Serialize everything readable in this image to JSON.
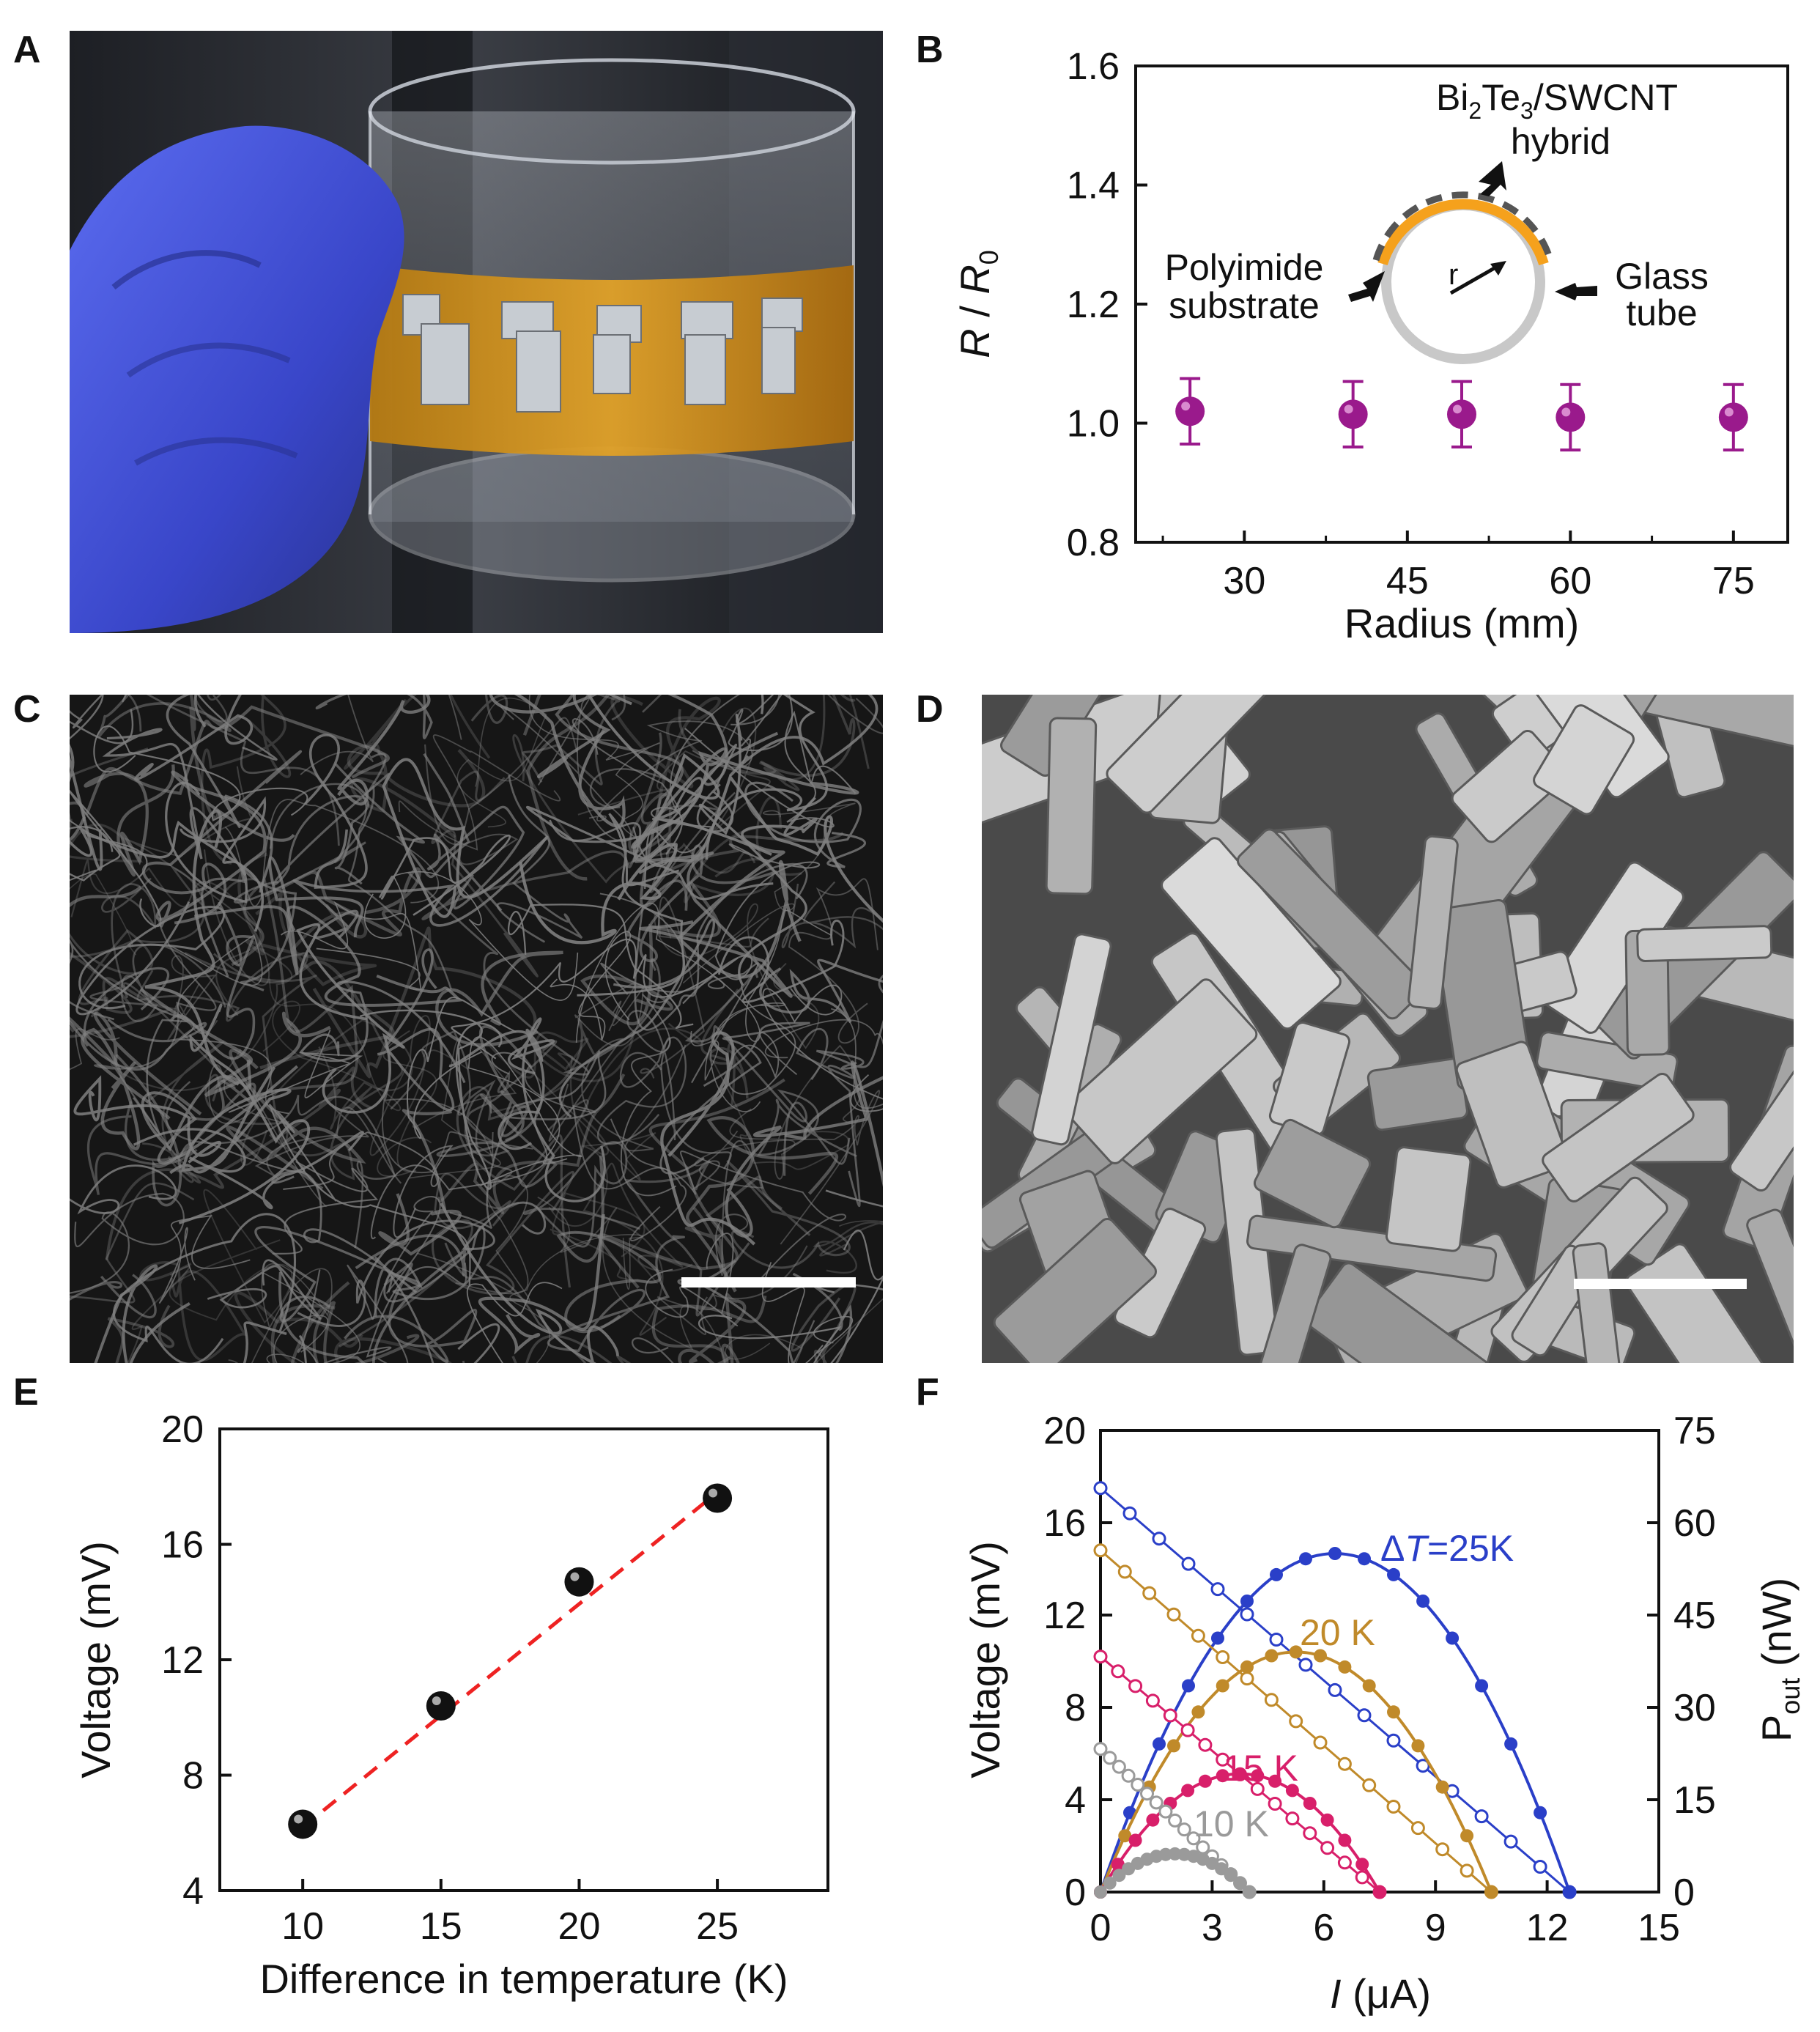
{
  "figure": {
    "panel_letters": [
      "A",
      "B",
      "C",
      "D",
      "E",
      "F"
    ]
  },
  "images": {
    "A": {
      "kind": "photo",
      "content": "gloved-hand-holding-glass-tube-with-thermoelectric-film"
    },
    "C": {
      "kind": "micrograph",
      "content": "swcnt-network"
    },
    "D": {
      "kind": "micrograph",
      "content": "bi2te3-platelets"
    }
  },
  "colors": {
    "purple_marker": "#9a1a8c",
    "orange_film": "#f5a11c",
    "dashed_fit": "#ee2222",
    "blue_25K": "#2a3fc8",
    "gold_20K": "#c08a2a",
    "pink_15K": "#d81f6a",
    "gray_10K": "#9a9a9a"
  },
  "chart_data": [
    {
      "panel": "B",
      "type": "scatter",
      "title": "",
      "xlabel": "Radius (mm)",
      "ylabel_main": "R",
      "ylabel_sep": " / ",
      "ylabel_sub_base": "R",
      "ylabel_sub": "0",
      "xticks": [
        "30",
        "45",
        "60",
        "75"
      ],
      "yticks": [
        "0.8",
        "1.0",
        "1.2",
        "1.4",
        "1.6"
      ],
      "xlim": [
        20,
        80
      ],
      "ylim": [
        0.8,
        1.6
      ],
      "x": [
        25,
        40,
        50,
        60,
        75
      ],
      "y": [
        1.02,
        1.015,
        1.015,
        1.01,
        1.01
      ],
      "yerr": [
        0.055,
        0.055,
        0.055,
        0.055,
        0.055
      ],
      "inset_labels": {
        "hybrid_line1_pre": "Bi",
        "hybrid_line1_sub1": "2",
        "hybrid_line1_mid": "Te",
        "hybrid_line1_sub2": "3",
        "hybrid_line1_post": "/SWCNT",
        "hybrid_line2": "hybrid",
        "polyimide_line1": "Polyimide",
        "polyimide_line2": "substrate",
        "glass_line1": "Glass",
        "glass_line2": "tube",
        "radius_symbol": "r"
      }
    },
    {
      "panel": "E",
      "type": "scatter",
      "title": "",
      "xlabel": "Difference in temperature (K)",
      "ylabel": "Voltage (mV)",
      "xticks": [
        "10",
        "15",
        "20",
        "25"
      ],
      "yticks": [
        "4",
        "8",
        "12",
        "16",
        "20"
      ],
      "xlim": [
        7,
        29
      ],
      "ylim": [
        4,
        20
      ],
      "x": [
        10,
        15,
        20,
        25
      ],
      "y": [
        6.3,
        10.4,
        14.7,
        17.6
      ],
      "fit_line": {
        "x": [
          10,
          25
        ],
        "y": [
          6.2,
          17.8
        ]
      }
    },
    {
      "panel": "F",
      "type": "line",
      "title": "",
      "xlabel_italic": "I",
      "xlabel_rest": " (μA)",
      "ylabel_left": "Voltage (mV)",
      "ylabel_right_base": "P",
      "ylabel_right_sub": "out",
      "ylabel_right_unit": " (nW)",
      "xticks": [
        "0",
        "3",
        "6",
        "9",
        "12",
        "15"
      ],
      "yticks_left": [
        "0",
        "4",
        "8",
        "12",
        "16",
        "20"
      ],
      "yticks_right": [
        "0",
        "15",
        "30",
        "45",
        "60",
        "75"
      ],
      "xlim": [
        0,
        15
      ],
      "ylim_left": [
        0,
        20
      ],
      "ylim_right": [
        0,
        75
      ],
      "series": [
        {
          "name": "25K",
          "label_delta": "Δ",
          "label_italic": "T",
          "label_rest": "=25K",
          "voc": 17.5,
          "isc": 12.6,
          "pmax": 55.0,
          "color_key": "blue_25K"
        },
        {
          "name": "20 K",
          "label_text": "20 K",
          "voc": 14.8,
          "isc": 10.5,
          "pmax": 39.0,
          "color_key": "gold_20K"
        },
        {
          "name": "15 K",
          "label_text": "15 K",
          "voc": 10.2,
          "isc": 7.5,
          "pmax": 19.2,
          "color_key": "pink_15K"
        },
        {
          "name": "10 K",
          "label_text": "10 K",
          "voc": 6.2,
          "isc": 4.0,
          "pmax": 6.2,
          "color_key": "gray_10K"
        }
      ]
    }
  ]
}
